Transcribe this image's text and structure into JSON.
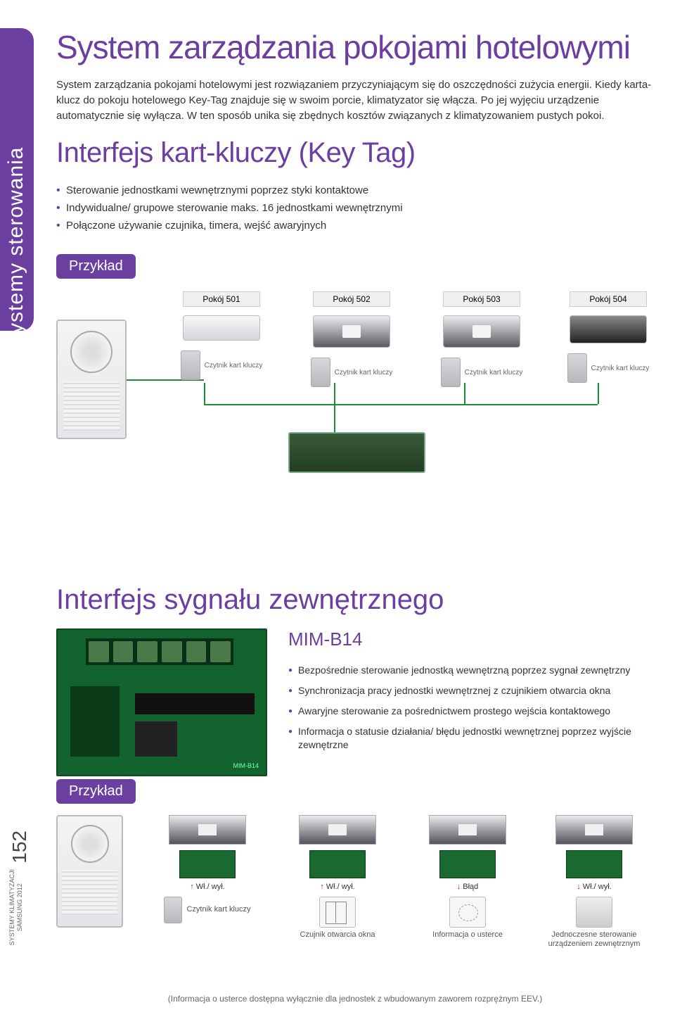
{
  "colors": {
    "brand": "#6b3fa0",
    "text": "#333333",
    "wire": "#1a8f3a",
    "magenta": "#c4007a"
  },
  "sidebar": {
    "label": "Systemy sterowania"
  },
  "section1": {
    "title": "System zarządzania pokojami hotelowymi",
    "paragraph": "System zarządzania pokojami hotelowymi jest rozwiązaniem przyczyniającym się do oszczędności zużycia energii. Kiedy karta-klucz do pokoju hotelowego Key-Tag znajduje się w swoim porcie, klimatyzator się włącza. Po jej wyjęciu urządzenie automatycznie się wyłącza. W ten sposób unika się zbędnych kosztów związanych z klimatyzowaniem pustych pokoi.",
    "subtitle": "Interfejs kart-kluczy (Key Tag)",
    "bullets": [
      "Sterowanie jednostkami wewnętrznymi poprzez styki kontaktowe",
      "Indywidualne/ grupowe sterowanie maks. 16 jednostkami wewnętrznymi",
      "Połączone używanie czujnika, timera, wejść awaryjnych"
    ],
    "badge": "Przykład",
    "rooms": [
      {
        "label": "Pokój 501",
        "reader": "Czytnik kart kluczy"
      },
      {
        "label": "Pokój 502",
        "reader": "Czytnik kart kluczy"
      },
      {
        "label": "Pokój 503",
        "reader": "Czytnik kart kluczy"
      },
      {
        "label": "Pokój 504",
        "reader": "Czytnik kart kluczy"
      }
    ]
  },
  "section2": {
    "title": "Interfejs sygnału zewnętrznego",
    "model": "MIM-B14",
    "bullets": [
      "Bezpośrednie sterowanie jednostką wewnętrzną poprzez sygnał zewnętrzny",
      "Synchronizacja pracy jednostki wewnętrznej z czujnikiem otwarcia okna",
      "Awaryjne sterowanie za pośrednictwem prostego wejścia kontaktowego",
      "Informacja o statusie działania/ błędu jednostki wewnętrznej poprzez wyjście zewnętrzne"
    ],
    "badge": "Przykład",
    "cols": [
      {
        "arrow": "Wł./ wył.",
        "caption": "Czytnik kart kluczy"
      },
      {
        "arrow": "Wł./ wył.",
        "caption": "Czujnik otwarcia okna"
      },
      {
        "arrow": "Błąd",
        "caption": "Informacja o usterce"
      },
      {
        "arrow": "Wł./ wył.",
        "caption": "Jednoczesne sterowanie urządzeniem zewnętrznym"
      }
    ],
    "footnote": "(Informacja o usterce dostępna wyłącznie dla jednostek z wbudowanym zaworem rozprężnym EEV.)"
  },
  "spine": {
    "page": "152",
    "line1": "SYSTEMY KLIMATYZACJI",
    "line2": "SAMSUNG 2012"
  }
}
